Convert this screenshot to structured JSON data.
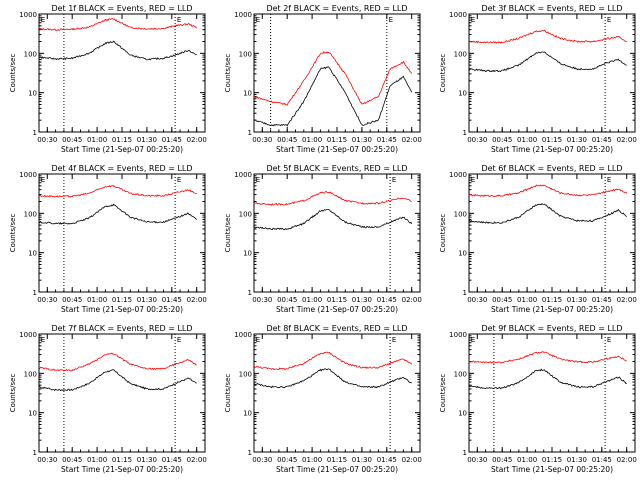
{
  "page": {
    "title_template": "Det {det} BLACK = Events, RED = LLD",
    "xlabel": "Start Time (21-Sep-07 00:25:20)",
    "ylabel": "Counts/sec",
    "marker": "E"
  },
  "chart_data": [
    {
      "type": "line",
      "det": "1f",
      "title": "Det 1f BLACK = Events, RED = LLD",
      "xlabel": "Start Time (21-Sep-07 00:25:20)",
      "ylabel": "Counts/sec",
      "x_ticks": [
        "00:30",
        "00:45",
        "01:00",
        "01:15",
        "01:30",
        "01:45",
        "02:00"
      ],
      "y_scale": "log",
      "ylim": [
        1,
        1000
      ],
      "y_ticks": [
        "1",
        "10",
        "100",
        "1000"
      ],
      "events_lines_at": [
        "00:40",
        "01:47"
      ],
      "series": [
        {
          "color": "#ff0000",
          "x": [
            "00:25",
            "00:35",
            "00:45",
            "00:55",
            "01:05",
            "01:10",
            "01:20",
            "01:30",
            "01:40",
            "01:47",
            "01:55",
            "02:00"
          ],
          "y": [
            420,
            400,
            410,
            460,
            700,
            750,
            450,
            420,
            430,
            500,
            560,
            450
          ]
        },
        {
          "color": "#000000",
          "x": [
            "00:25",
            "00:35",
            "00:45",
            "00:55",
            "01:05",
            "01:10",
            "01:20",
            "01:30",
            "01:40",
            "01:47",
            "01:55",
            "02:00"
          ],
          "y": [
            80,
            72,
            75,
            100,
            180,
            200,
            90,
            70,
            75,
            90,
            120,
            90
          ]
        }
      ]
    },
    {
      "type": "line",
      "det": "2f",
      "title": "Det 2f BLACK = Events, RED = LLD",
      "xlabel": "Start Time (21-Sep-07 00:25:20)",
      "ylabel": "Counts/sec",
      "x_ticks": [
        "00:30",
        "00:45",
        "01:00",
        "01:15",
        "01:30",
        "01:45",
        "02:00"
      ],
      "y_scale": "log",
      "ylim": [
        1,
        1000
      ],
      "y_ticks": [
        "1",
        "10",
        "100",
        "1000"
      ],
      "events_lines_at": [
        "00:35",
        "01:45"
      ],
      "series": [
        {
          "color": "#ff0000",
          "x": [
            "00:25",
            "00:35",
            "00:45",
            "00:55",
            "01:05",
            "01:10",
            "01:20",
            "01:30",
            "01:40",
            "01:47",
            "01:55",
            "02:00"
          ],
          "y": [
            8,
            6,
            5,
            20,
            100,
            110,
            30,
            5,
            8,
            40,
            60,
            30
          ]
        },
        {
          "color": "#000000",
          "x": [
            "00:25",
            "00:35",
            "00:45",
            "00:55",
            "01:05",
            "01:10",
            "01:20",
            "01:30",
            "01:40",
            "01:47",
            "01:55",
            "02:00"
          ],
          "y": [
            2,
            1.5,
            1.5,
            6,
            40,
            45,
            10,
            1.5,
            2,
            15,
            25,
            10
          ]
        }
      ]
    },
    {
      "type": "line",
      "det": "3f",
      "title": "Det 3f BLACK = Events, RED = LLD",
      "xlabel": "Start Time (21-Sep-07 00:25:20)",
      "ylabel": "Counts/sec",
      "x_ticks": [
        "00:30",
        "00:45",
        "01:00",
        "01:15",
        "01:30",
        "01:45",
        "02:00"
      ],
      "y_scale": "log",
      "ylim": [
        1,
        1000
      ],
      "y_ticks": [
        "1",
        "10",
        "100",
        "1000"
      ],
      "events_lines_at": [
        "01:47"
      ],
      "series": [
        {
          "color": "#ff0000",
          "x": [
            "00:25",
            "00:35",
            "00:45",
            "00:55",
            "01:05",
            "01:10",
            "01:20",
            "01:30",
            "01:40",
            "01:47",
            "01:55",
            "02:00"
          ],
          "y": [
            200,
            190,
            190,
            240,
            360,
            380,
            240,
            200,
            200,
            230,
            260,
            200
          ]
        },
        {
          "color": "#000000",
          "x": [
            "00:25",
            "00:35",
            "00:45",
            "00:55",
            "01:05",
            "01:10",
            "01:20",
            "01:30",
            "01:40",
            "01:47",
            "01:55",
            "02:00"
          ],
          "y": [
            40,
            36,
            36,
            50,
            100,
            110,
            55,
            40,
            40,
            55,
            70,
            50
          ]
        }
      ]
    },
    {
      "type": "line",
      "det": "4f",
      "title": "Det 4f BLACK = Events, RED = LLD",
      "xlabel": "Start Time (21-Sep-07 00:25:20)",
      "ylabel": "Counts/sec",
      "x_ticks": [
        "00:30",
        "00:45",
        "01:00",
        "01:15",
        "01:30",
        "01:45",
        "02:00"
      ],
      "y_scale": "log",
      "ylim": [
        1,
        1000
      ],
      "y_ticks": [
        "1",
        "10",
        "100",
        "1000"
      ],
      "events_lines_at": [
        "00:40",
        "01:47"
      ],
      "series": [
        {
          "color": "#ff0000",
          "x": [
            "00:25",
            "00:35",
            "00:45",
            "00:55",
            "01:05",
            "01:10",
            "01:20",
            "01:30",
            "01:40",
            "01:47",
            "01:55",
            "02:00"
          ],
          "y": [
            280,
            270,
            270,
            320,
            480,
            500,
            320,
            280,
            280,
            330,
            400,
            300
          ]
        },
        {
          "color": "#000000",
          "x": [
            "00:25",
            "00:35",
            "00:45",
            "00:55",
            "01:05",
            "01:10",
            "01:20",
            "01:30",
            "01:40",
            "01:47",
            "01:55",
            "02:00"
          ],
          "y": [
            60,
            55,
            55,
            75,
            150,
            165,
            80,
            60,
            60,
            75,
            100,
            70
          ]
        }
      ]
    },
    {
      "type": "line",
      "det": "5f",
      "title": "Det 5f BLACK = Events, RED = LLD",
      "xlabel": "Start Time (21-Sep-07 00:25:20)",
      "ylabel": "Counts/sec",
      "x_ticks": [
        "00:30",
        "00:45",
        "01:00",
        "01:15",
        "01:30",
        "01:45",
        "02:00"
      ],
      "y_scale": "log",
      "ylim": [
        1,
        1000
      ],
      "y_ticks": [
        "1",
        "10",
        "100",
        "1000"
      ],
      "events_lines_at": [
        "01:47"
      ],
      "series": [
        {
          "color": "#ff0000",
          "x": [
            "00:25",
            "00:35",
            "00:45",
            "00:55",
            "01:05",
            "01:10",
            "01:20",
            "01:30",
            "01:40",
            "01:47",
            "01:55",
            "02:00"
          ],
          "y": [
            180,
            170,
            170,
            210,
            330,
            350,
            210,
            180,
            180,
            210,
            250,
            200
          ]
        },
        {
          "color": "#000000",
          "x": [
            "00:25",
            "00:35",
            "00:45",
            "00:55",
            "01:05",
            "01:10",
            "01:20",
            "01:30",
            "01:40",
            "01:47",
            "01:55",
            "02:00"
          ],
          "y": [
            45,
            40,
            40,
            55,
            115,
            125,
            60,
            45,
            45,
            60,
            80,
            55
          ]
        }
      ]
    },
    {
      "type": "line",
      "det": "6f",
      "title": "Det 6f BLACK = Events, RED = LLD",
      "xlabel": "Start Time (21-Sep-07 00:25:20)",
      "ylabel": "Counts/sec",
      "x_ticks": [
        "00:30",
        "00:45",
        "01:00",
        "01:15",
        "01:30",
        "01:45",
        "02:00"
      ],
      "y_scale": "log",
      "ylim": [
        1,
        1000
      ],
      "y_ticks": [
        "1",
        "10",
        "100",
        "1000"
      ],
      "events_lines_at": [
        "01:47"
      ],
      "series": [
        {
          "color": "#ff0000",
          "x": [
            "00:25",
            "00:35",
            "00:45",
            "00:55",
            "01:05",
            "01:10",
            "01:20",
            "01:30",
            "01:40",
            "01:47",
            "01:55",
            "02:00"
          ],
          "y": [
            290,
            280,
            280,
            330,
            500,
            520,
            330,
            290,
            290,
            350,
            420,
            330
          ]
        },
        {
          "color": "#000000",
          "x": [
            "00:25",
            "00:35",
            "00:45",
            "00:55",
            "01:05",
            "01:10",
            "01:20",
            "01:30",
            "01:40",
            "01:47",
            "01:55",
            "02:00"
          ],
          "y": [
            65,
            58,
            58,
            80,
            160,
            175,
            85,
            65,
            65,
            85,
            120,
            85
          ]
        }
      ]
    },
    {
      "type": "line",
      "det": "7f",
      "title": "Det 7f BLACK = Events, RED = LLD",
      "xlabel": "Start Time (21-Sep-07 00:25:20)",
      "ylabel": "Counts/sec",
      "x_ticks": [
        "00:30",
        "00:45",
        "01:00",
        "01:15",
        "01:30",
        "01:45",
        "02:00"
      ],
      "y_scale": "log",
      "ylim": [
        1,
        1000
      ],
      "y_ticks": [
        "1",
        "10",
        "100",
        "1000"
      ],
      "events_lines_at": [
        "00:40",
        "01:47"
      ],
      "series": [
        {
          "color": "#ff0000",
          "x": [
            "00:25",
            "00:35",
            "00:45",
            "00:55",
            "01:05",
            "01:10",
            "01:20",
            "01:30",
            "01:40",
            "01:47",
            "01:55",
            "02:00"
          ],
          "y": [
            140,
            120,
            120,
            170,
            300,
            320,
            170,
            130,
            130,
            170,
            220,
            160
          ]
        },
        {
          "color": "#000000",
          "x": [
            "00:25",
            "00:35",
            "00:45",
            "00:55",
            "01:05",
            "01:10",
            "01:20",
            "01:30",
            "01:40",
            "01:47",
            "01:55",
            "02:00"
          ],
          "y": [
            45,
            38,
            38,
            55,
            110,
            120,
            55,
            40,
            40,
            55,
            75,
            55
          ]
        }
      ]
    },
    {
      "type": "line",
      "det": "8f",
      "title": "Det 8f BLACK = Events, RED = LLD",
      "xlabel": "Start Time (21-Sep-07 00:25:20)",
      "ylabel": "Counts/sec",
      "x_ticks": [
        "00:30",
        "00:45",
        "01:00",
        "01:15",
        "01:30",
        "01:45",
        "02:00"
      ],
      "y_scale": "log",
      "ylim": [
        1,
        1000
      ],
      "y_ticks": [
        "1",
        "10",
        "100",
        "1000"
      ],
      "events_lines_at": [
        "01:47"
      ],
      "series": [
        {
          "color": "#ff0000",
          "x": [
            "00:25",
            "00:35",
            "00:45",
            "00:55",
            "01:05",
            "01:10",
            "01:20",
            "01:30",
            "01:40",
            "01:47",
            "01:55",
            "02:00"
          ],
          "y": [
            150,
            130,
            130,
            180,
            320,
            340,
            180,
            140,
            140,
            180,
            230,
            170
          ]
        },
        {
          "color": "#000000",
          "x": [
            "00:25",
            "00:35",
            "00:45",
            "00:55",
            "01:05",
            "01:10",
            "01:20",
            "01:30",
            "01:40",
            "01:47",
            "01:55",
            "02:00"
          ],
          "y": [
            55,
            45,
            45,
            65,
            120,
            130,
            60,
            45,
            45,
            60,
            80,
            55
          ]
        }
      ]
    },
    {
      "type": "line",
      "det": "9f",
      "title": "Det 9f BLACK = Events, RED = LLD",
      "xlabel": "Start Time (21-Sep-07 00:25:20)",
      "ylabel": "Counts/sec",
      "x_ticks": [
        "00:30",
        "00:45",
        "01:00",
        "01:15",
        "01:30",
        "01:45",
        "02:00"
      ],
      "y_scale": "log",
      "ylim": [
        1,
        1000
      ],
      "y_ticks": [
        "1",
        "10",
        "100",
        "1000"
      ],
      "events_lines_at": [
        "00:40",
        "01:47"
      ],
      "series": [
        {
          "color": "#ff0000",
          "x": [
            "00:25",
            "00:35",
            "00:45",
            "00:55",
            "01:05",
            "01:10",
            "01:20",
            "01:30",
            "01:40",
            "01:47",
            "01:55",
            "02:00"
          ],
          "y": [
            200,
            190,
            190,
            230,
            330,
            350,
            230,
            195,
            195,
            230,
            270,
            210
          ]
        },
        {
          "color": "#000000",
          "x": [
            "00:25",
            "00:35",
            "00:45",
            "00:55",
            "01:05",
            "01:10",
            "01:20",
            "01:30",
            "01:40",
            "01:47",
            "01:55",
            "02:00"
          ],
          "y": [
            48,
            42,
            42,
            58,
            115,
            125,
            60,
            45,
            45,
            60,
            80,
            55
          ]
        }
      ]
    }
  ]
}
